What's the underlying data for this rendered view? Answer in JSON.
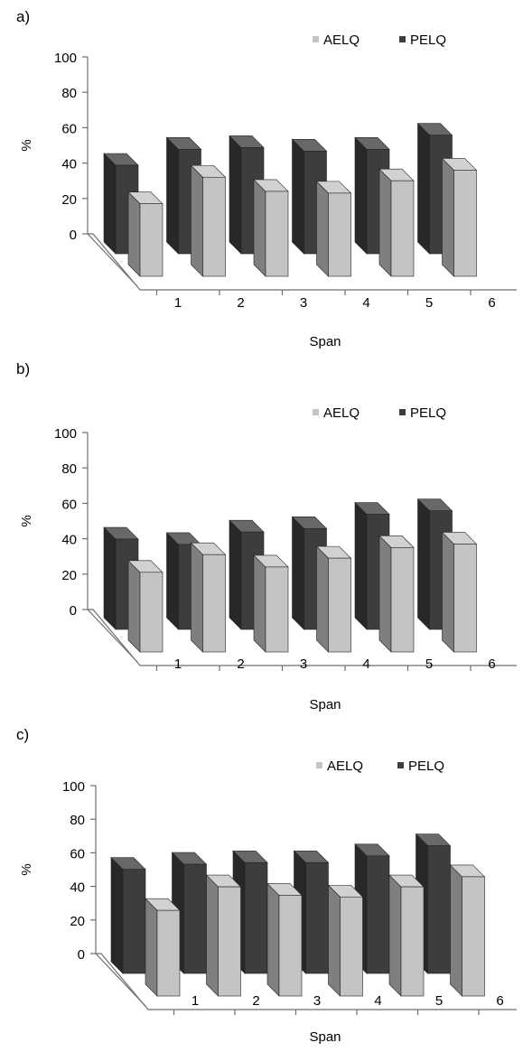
{
  "colors": {
    "AELQ": "#c4c4c4",
    "PELQ": "#3d3d3d",
    "frame": "#6e6e6e"
  },
  "chart_data": [
    {
      "panel_label": "a)",
      "type": "bar",
      "categories": [
        "1",
        "2",
        "3",
        "4",
        "5",
        "6"
      ],
      "series": [
        {
          "name": "AELQ",
          "values": [
            41,
            56,
            48,
            47,
            54,
            60
          ]
        },
        {
          "name": "PELQ",
          "values": [
            50,
            59,
            60,
            58,
            59,
            67
          ]
        }
      ],
      "xlabel": "Span",
      "ylabel": "%",
      "ylim": [
        0,
        100
      ],
      "yticks": [
        0,
        20,
        40,
        60,
        80,
        100
      ],
      "legend": "top-right",
      "grid": false
    },
    {
      "panel_label": "b)",
      "type": "bar",
      "categories": [
        "1",
        "2",
        "3",
        "4",
        "5",
        "6"
      ],
      "series": [
        {
          "name": "AELQ",
          "values": [
            45,
            55,
            48,
            53,
            59,
            61
          ]
        },
        {
          "name": "PELQ",
          "values": [
            51,
            48,
            55,
            57,
            65,
            67
          ]
        }
      ],
      "xlabel": "Span",
      "ylabel": "%",
      "ylim": [
        0,
        100
      ],
      "yticks": [
        0,
        20,
        40,
        60,
        80,
        100
      ],
      "legend": "top-right",
      "grid": false
    },
    {
      "panel_label": "c)",
      "type": "bar",
      "categories": [
        "1",
        "2",
        "3",
        "4",
        "5",
        "6"
      ],
      "series": [
        {
          "name": "AELQ",
          "values": [
            51,
            65,
            60,
            59,
            65,
            71
          ]
        },
        {
          "name": "PELQ",
          "values": [
            62,
            65,
            66,
            66,
            70,
            76
          ]
        }
      ],
      "xlabel": "Span",
      "ylabel": "%",
      "ylim": [
        0,
        100
      ],
      "yticks": [
        0,
        20,
        40,
        60,
        80,
        100
      ],
      "legend": "top-right",
      "grid": false
    }
  ]
}
